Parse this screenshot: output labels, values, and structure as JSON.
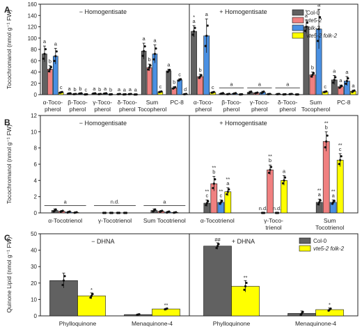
{
  "colors": {
    "Col-0": "#616161",
    "vte5-2": "#f08080",
    "folk-2": "#4a90e2",
    "vte5-2 folk-2": "#ffff00"
  },
  "chart_data": [
    {
      "panel": "A",
      "type": "bar",
      "ylabel": "Tocochromanol (nmol g⁻¹ FW)",
      "ylim": [
        0,
        160
      ],
      "yticks": [
        0,
        20,
        40,
        60,
        80,
        100,
        120,
        140,
        160
      ],
      "legend": {
        "placement": "top-right",
        "entries": [
          "Col-0",
          "vte5-2",
          "folk-2",
          "vte5-2 folk-2"
        ]
      },
      "groups": [
        {
          "condition": "− Homogentisate",
          "categories": [
            "α-Toco-\npherol",
            "β-Toco-\npherol",
            "γ-Toco-\npherol",
            "δ-Toco-\npherol",
            "Sum\nTocopherol",
            "PC-8"
          ],
          "series": [
            {
              "name": "Col-0",
              "values": [
                72,
                2,
                2,
                1,
                77,
                42
              ],
              "err": [
                14,
                0.5,
                0.5,
                0.3,
                14,
                3
              ]
            },
            {
              "name": "vte5-2",
              "values": [
                45,
                1,
                1,
                0.5,
                48,
                12
              ],
              "err": [
                6,
                0.3,
                0.3,
                0.2,
                6,
                2
              ]
            },
            {
              "name": "folk-2",
              "values": [
                68,
                2,
                2,
                1,
                72,
                26
              ],
              "err": [
                14,
                0.5,
                0.5,
                0.3,
                16,
                2
              ]
            },
            {
              "name": "vte5-2 folk-2",
              "values": [
                4,
                0.5,
                0.5,
                0.3,
                5,
                1
              ],
              "err": [
                1,
                0.2,
                0.2,
                0.1,
                1,
                0.5
              ]
            }
          ],
          "letters": [
            [
              "a",
              "b",
              "a",
              "c"
            ],
            [
              "a",
              "b",
              "b",
              "c"
            ],
            [
              "a",
              "b",
              "a",
              "b"
            ],
            [
              "a",
              "a",
              "a",
              "a"
            ],
            [
              "a",
              "b",
              "a",
              "c"
            ],
            [
              "a",
              "b",
              "c",
              "d"
            ]
          ],
          "stars": []
        },
        {
          "condition": "+ Homogentisate",
          "categories": [
            "α-Toco-\npherol",
            "β-Toco-\npherol",
            "γ-Toco-\npherol",
            "δ-Toco-\npherol",
            "Sum\nTocopherol",
            "PC-8"
          ],
          "series": [
            {
              "name": "Col-0",
              "values": [
                112,
                2,
                4,
                1,
                120,
                26
              ],
              "err": [
                10,
                1,
                2,
                0.3,
                12,
                8
              ]
            },
            {
              "name": "vte5-2",
              "values": [
                32,
                1,
                3,
                0.5,
                35,
                14
              ],
              "err": [
                4,
                0.5,
                1,
                0.2,
                5,
                3
              ]
            },
            {
              "name": "folk-2",
              "values": [
                104,
                2,
                4,
                1,
                116,
                24
              ],
              "err": [
                30,
                1,
                2,
                0.3,
                35,
                8
              ]
            },
            {
              "name": "vte5-2 folk-2",
              "values": [
                4,
                0.5,
                1,
                0.3,
                5,
                6
              ],
              "err": [
                1,
                0.2,
                0.3,
                0.1,
                1,
                2
              ]
            }
          ],
          "letters": [
            [
              "a",
              "b",
              "a",
              "c"
            ],
            [
              "a",
              "a",
              "a",
              "a"
            ],
            [
              "a",
              "a",
              "a",
              "a"
            ],
            [
              "a",
              "a",
              "a",
              "a"
            ],
            [
              "a",
              "b",
              "a",
              "c"
            ],
            [
              "a",
              "a",
              "a",
              "a"
            ]
          ],
          "stars": [
            [
              "*",
              "",
              "",
              ""
            ],
            [
              "",
              "",
              "",
              ""
            ],
            [
              "",
              "",
              "",
              ""
            ],
            [
              "",
              "",
              "",
              ""
            ],
            [
              "*",
              "",
              "",
              ""
            ],
            [
              "",
              "",
              "",
              ""
            ]
          ],
          "brackets": [
            1,
            2,
            3
          ]
        }
      ]
    },
    {
      "panel": "B",
      "type": "bar",
      "ylabel": "Tocochromanol (nmol g⁻¹ FW)",
      "ylim": [
        0,
        12
      ],
      "yticks": [
        0,
        2,
        4,
        6,
        8,
        10,
        12
      ],
      "groups": [
        {
          "condition": "− Homogentisate",
          "categories": [
            "α-Tocotrienol",
            "γ-Tocotrienol",
            "Sum Tocotrienol"
          ],
          "series": [
            {
              "name": "Col-0",
              "values": [
                0.3,
                0,
                0.3
              ],
              "err": [
                0.2,
                0,
                0.2
              ]
            },
            {
              "name": "vte5-2",
              "values": [
                0.2,
                0,
                0.2
              ],
              "err": [
                0.1,
                0,
                0.1
              ]
            },
            {
              "name": "folk-2",
              "values": [
                0.1,
                0,
                0.1
              ],
              "err": [
                0.1,
                0,
                0.1
              ]
            },
            {
              "name": "vte5-2 folk-2",
              "values": [
                0.05,
                0,
                0.05
              ],
              "err": [
                0.05,
                0,
                0.05
              ]
            }
          ],
          "group_labels": [
            "a",
            "n.d.",
            "a"
          ],
          "letters": [],
          "stars": []
        },
        {
          "condition": "+ Homogentisate",
          "categories": [
            "α-Tocotrienol",
            "γ-Toco-\ntrienol",
            "Sum\nTocotrienol"
          ],
          "series": [
            {
              "name": "Col-0",
              "values": [
                1.2,
                0,
                1.3
              ],
              "err": [
                0.4,
                0,
                0.4
              ]
            },
            {
              "name": "vte5-2",
              "values": [
                3.6,
                5.3,
                8.8
              ],
              "err": [
                0.9,
                0.6,
                1.2
              ]
            },
            {
              "name": "folk-2",
              "values": [
                1.3,
                0,
                1.3
              ],
              "err": [
                0.3,
                0,
                0.3
              ]
            },
            {
              "name": "vte5-2 folk-2",
              "values": [
                2.6,
                4.0,
                6.5
              ],
              "err": [
                0.5,
                0.6,
                0.8
              ]
            }
          ],
          "letters": [
            [
              "c",
              "b",
              "c",
              "a"
            ],
            [
              "n.d.",
              "b",
              "n.d.",
              "a"
            ],
            [
              "a",
              "b",
              "a",
              "c"
            ]
          ],
          "stars": [
            [
              "**",
              "**",
              "**",
              "**"
            ],
            [
              "",
              "**",
              "",
              ""
            ],
            [
              "**",
              "**",
              "**",
              "**"
            ]
          ]
        }
      ]
    },
    {
      "panel": "C",
      "type": "bar",
      "ylabel": "Quinone Lipid (nmol g⁻¹ FW)",
      "ylim": [
        0,
        50
      ],
      "yticks": [
        0,
        10,
        20,
        30,
        40,
        50
      ],
      "legend": {
        "placement": "top-right",
        "entries": [
          "Col-0",
          "vte5-2 folk-2"
        ]
      },
      "groups": [
        {
          "condition": "− DHNA",
          "categories": [
            "Phylloquinone",
            "Menaquinone-4"
          ],
          "series": [
            {
              "name": "Col-0",
              "values": [
                21.5,
                0.8
              ],
              "err": [
                4.5,
                0.3
              ]
            },
            {
              "name": "vte5-2 folk-2",
              "values": [
                12.2,
                4.2
              ],
              "err": [
                1.8,
                0.4
              ]
            }
          ],
          "stars": [
            [
              "",
              "*"
            ],
            [
              "",
              "**"
            ]
          ]
        },
        {
          "condition": "+ DHNA",
          "categories": [
            "Phylloquinone",
            "Menaquinone-4"
          ],
          "series": [
            {
              "name": "Col-0",
              "values": [
                42.5,
                1.5
              ],
              "err": [
                2.0,
                1.5
              ]
            },
            {
              "name": "vte5-2 folk-2",
              "values": [
                18.0,
                3.8
              ],
              "err": [
                3.5,
                1.0
              ]
            }
          ],
          "stars": [
            [
              "##",
              "**"
            ],
            [
              "",
              "*"
            ]
          ]
        }
      ]
    }
  ]
}
